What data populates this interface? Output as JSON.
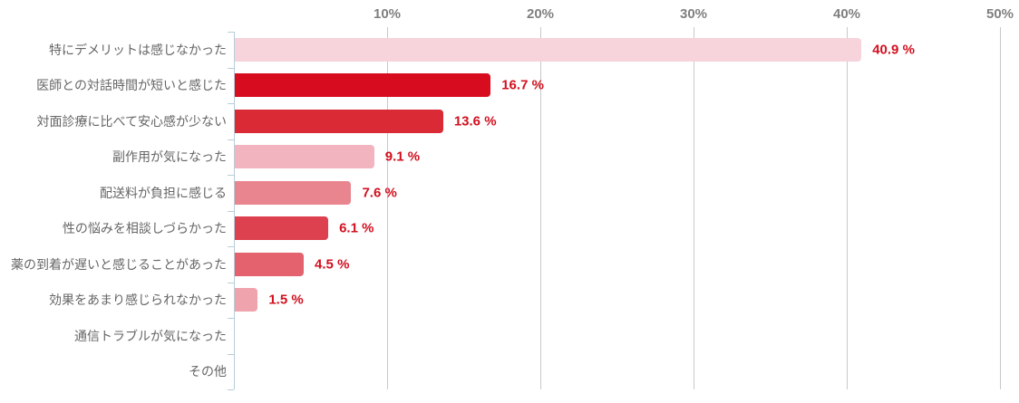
{
  "chart_data": {
    "type": "bar",
    "orientation": "horizontal",
    "title": "",
    "xlabel": "",
    "ylabel": "",
    "xlim": [
      0,
      50
    ],
    "grid": true,
    "legend": false,
    "categories": [
      "特にデメリットは感じなかった",
      "医師との対話時間が短いと感じた",
      "対面診療に比べて安心感が少ない",
      "副作用が気になった",
      "配送料が負担に感じる",
      "性の悩みを相談しづらかった",
      "薬の到着が遅いと感じることがあった",
      "効果をあまり感じられなかった",
      "通信トラブルが気になった",
      "その他"
    ],
    "values": [
      40.9,
      16.7,
      13.6,
      9.1,
      7.6,
      6.1,
      4.5,
      1.5,
      0,
      0
    ],
    "value_labels": [
      "40.9 %",
      "16.7 %",
      "13.6 %",
      "9.1 %",
      "7.6 %",
      "6.1 %",
      "4.5 %",
      "1.5 %",
      "",
      ""
    ],
    "bar_colors": [
      "#f7d3db",
      "#d70c1e",
      "#da2a35",
      "#f2b5c0",
      "#e9858f",
      "#dd404e",
      "#e3626d",
      "#efa3ad",
      "#efa3ad",
      "#efa3ad"
    ],
    "x_ticks": [
      {
        "value": 10,
        "label": "10%"
      },
      {
        "value": 20,
        "label": "20%"
      },
      {
        "value": 30,
        "label": "30%"
      },
      {
        "value": 40,
        "label": "40%"
      },
      {
        "value": 50,
        "label": "50%"
      }
    ],
    "colors": {
      "data_label": "#d2101f",
      "category_label": "#666666",
      "tick_label": "#7f7f7f",
      "gridline": "#c9c9c9",
      "axis_line": "#b8cdd9"
    }
  }
}
